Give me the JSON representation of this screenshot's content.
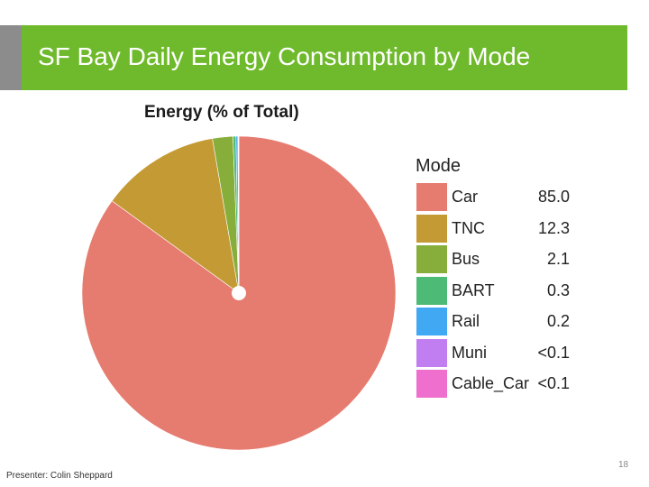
{
  "slide": {
    "title": "SF Bay Daily Energy Consumption by Mode",
    "presenter": "Presenter: Colin Sheppard",
    "page_number": "18",
    "banner_color": "#6fba2c"
  },
  "chart_data": {
    "type": "pie",
    "title": "Energy (% of Total)",
    "legend_title": "Mode",
    "legend_position": "right",
    "slices": [
      {
        "label": "Car",
        "value": 85.0,
        "display": "85.0",
        "color": "#e67c6f"
      },
      {
        "label": "TNC",
        "value": 12.3,
        "display": "12.3",
        "color": "#c49a34"
      },
      {
        "label": "Bus",
        "value": 2.1,
        "display": "2.1",
        "color": "#87ad3a"
      },
      {
        "label": "BART",
        "value": 0.3,
        "display": "0.3",
        "color": "#4dbb76"
      },
      {
        "label": "Rail",
        "value": 0.2,
        "display": "0.2",
        "color": "#41a9f3"
      },
      {
        "label": "Muni",
        "value": 0.05,
        "display": "<0.1",
        "color": "#c17ef1"
      },
      {
        "label": "Cable_Car",
        "value": 0.05,
        "display": "<0.1",
        "color": "#ee6fcd"
      }
    ]
  }
}
